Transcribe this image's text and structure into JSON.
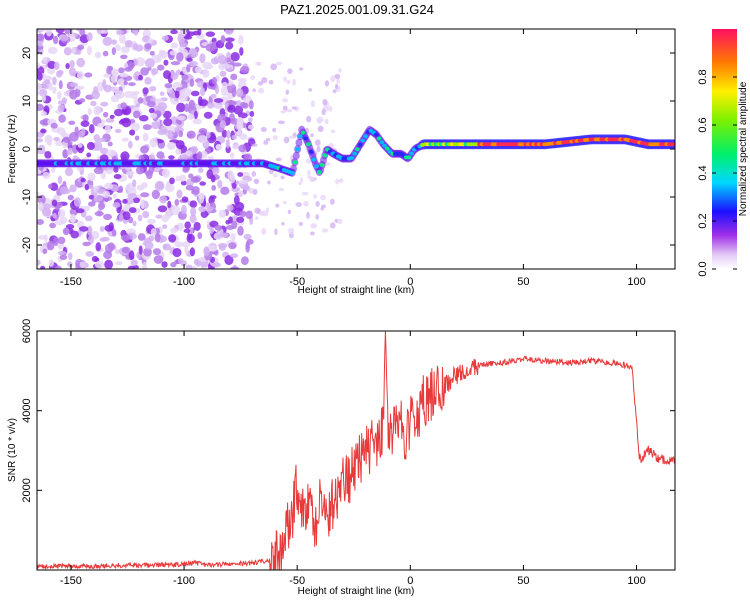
{
  "title": "PAZ1.2025.001.09.31.G24",
  "chart_data": [
    {
      "type": "heatmap",
      "xlabel": "Height of straight line (km)",
      "ylabel": "Frequency (Hz)",
      "xlim": [
        -165,
        117
      ],
      "ylim": [
        -25,
        25
      ],
      "xticks": [
        "-150",
        "-100",
        "-50",
        "0",
        "50",
        "100"
      ],
      "yticks": [
        "20",
        "10",
        "0",
        "-10",
        "-20"
      ],
      "colorbar": {
        "label": "Normalized spectral amplitude",
        "range": [
          0,
          1
        ],
        "ticks": [
          "0.0",
          "0.2",
          "0.4",
          "0.6",
          "0.8"
        ]
      },
      "ridge": {
        "x": [
          -165,
          -150,
          -130,
          -110,
          -90,
          -75,
          -65,
          -58,
          -52,
          -48,
          -45,
          -42,
          -40,
          -37,
          -34,
          -30,
          -26,
          -22,
          -18,
          -15,
          -12,
          -8,
          -4,
          -1,
          2,
          6,
          10,
          20,
          40,
          60,
          80,
          95,
          105,
          117
        ],
        "y": [
          -3,
          -3,
          -3,
          -3,
          -3,
          -3,
          -3,
          -4,
          -5,
          4,
          1,
          -3,
          -5,
          0,
          -1,
          -2,
          -2,
          1,
          4,
          3,
          1,
          -1,
          -1,
          -2,
          0,
          1,
          1,
          1,
          1,
          1,
          2,
          2,
          1,
          1
        ]
      }
    },
    {
      "type": "line",
      "xlabel": "Height of straight line (km)",
      "ylabel": "SNR (10 * v/v)",
      "xlim": [
        -165,
        117
      ],
      "ylim": [
        0,
        6000
      ],
      "xticks": [
        "-150",
        "-100",
        "-50",
        "0",
        "50",
        "100"
      ],
      "yticks": [
        "6000",
        "4000",
        "2000"
      ],
      "color": "#e83a3a",
      "series": [
        {
          "x": [
            -165,
            -150,
            -140,
            -130,
            -120,
            -110,
            -100,
            -95,
            -90,
            -80,
            -70,
            -62,
            -58,
            -55,
            -52,
            -50,
            -48,
            -45,
            -42,
            -40,
            -38,
            -35,
            -32,
            -30,
            -27,
            -24,
            -20,
            -17,
            -14,
            -12,
            -11,
            -10,
            -8,
            -5,
            -2,
            0,
            3,
            6,
            10,
            15,
            20,
            25,
            30,
            40,
            50,
            60,
            70,
            80,
            90,
            98,
            100,
            101,
            102,
            105,
            110,
            117
          ],
          "y": [
            80,
            100,
            90,
            120,
            110,
            130,
            140,
            180,
            120,
            150,
            170,
            250,
            400,
            900,
            1500,
            2200,
            1300,
            1700,
            1000,
            1800,
            1400,
            1600,
            1900,
            2200,
            2300,
            2600,
            2900,
            3100,
            3200,
            3600,
            6000,
            3500,
            3300,
            3700,
            3400,
            3700,
            3900,
            4300,
            4400,
            4600,
            4900,
            5000,
            5150,
            5200,
            5300,
            5250,
            5200,
            5250,
            5200,
            5100,
            3700,
            2900,
            2800,
            3000,
            2800,
            2750
          ]
        }
      ]
    }
  ]
}
